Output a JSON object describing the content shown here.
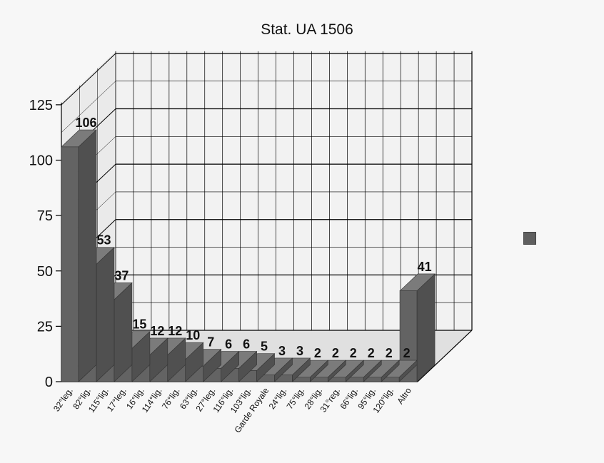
{
  "chart_data": {
    "type": "bar",
    "title": "Stat. UA 1506",
    "xlabel": "",
    "ylabel": "",
    "categories": [
      "32°leg.",
      "82°lig.",
      "115°lig.",
      "17°leg.",
      "16°lig.",
      "114°lig.",
      "76°lig.",
      "63°lig.",
      "27°leg.",
      "116°lig.",
      "103°lig.",
      "Garde Royale",
      "24°lig.",
      "75°lig.",
      "28°lig.",
      "31°reg.",
      "66°lig.",
      "95°lig.",
      "120°lig.",
      "Altro"
    ],
    "values": [
      106,
      53,
      37,
      15,
      12,
      12,
      10,
      7,
      6,
      6,
      5,
      3,
      3,
      2,
      2,
      2,
      2,
      2,
      2,
      41
    ],
    "data_labels": [
      "106",
      "53",
      "37",
      "15",
      "12",
      "12",
      "10",
      "7",
      "6",
      "6",
      "5",
      "3",
      "3",
      "2",
      "2",
      "2",
      "2",
      "2",
      "2",
      "41"
    ],
    "ylim": [
      0,
      125
    ],
    "yticks": [
      "0",
      "25",
      "50",
      "75",
      "100",
      "125"
    ],
    "grid": true,
    "legend": "right",
    "colors": {
      "bar_front": "#636363",
      "bar_side": "#505050",
      "bar_top": "#7b7b7b",
      "wall": "#f2f2f2",
      "grid": "#000000"
    }
  }
}
